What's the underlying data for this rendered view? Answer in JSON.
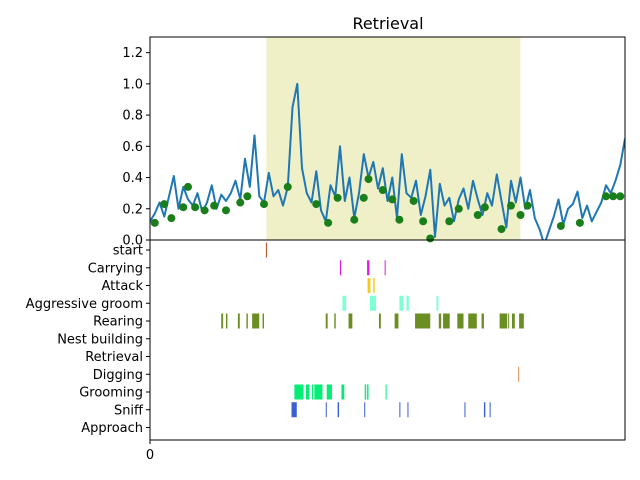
{
  "title": "Retrieval",
  "chart_data": [
    {
      "type": "line",
      "title": "Retrieval",
      "ylim": [
        0,
        1.3
      ],
      "yticks": [
        "0.0",
        "0.2",
        "0.4",
        "0.6",
        "0.8",
        "1.0",
        "1.2"
      ],
      "xlim": [
        0,
        100
      ],
      "highlight_span": {
        "start": 24.5,
        "end": 78,
        "color": "#f0f0c8"
      },
      "series": [
        {
          "color": "#1f77b4",
          "x": [
            0,
            1,
            2,
            3,
            4,
            5,
            6,
            7,
            8,
            9,
            10,
            11,
            12,
            13,
            14,
            15,
            16,
            17,
            18,
            19,
            20,
            21,
            22,
            23,
            24,
            25,
            26,
            27,
            28,
            29,
            30,
            31,
            32,
            33,
            34,
            35,
            36,
            37,
            38,
            39,
            40,
            41,
            42,
            43,
            44,
            45,
            46,
            47,
            48,
            49,
            50,
            51,
            52,
            53,
            54,
            55,
            56,
            57,
            58,
            59,
            60,
            61,
            62,
            63,
            64,
            65,
            66,
            67,
            68,
            69,
            70,
            71,
            72,
            73,
            74,
            75,
            76,
            77,
            78,
            79,
            80,
            81,
            82,
            83,
            84,
            85,
            86,
            87,
            88,
            89,
            90,
            91,
            92,
            93,
            94,
            95,
            96,
            97,
            98,
            99,
            100
          ],
          "y": [
            0.12,
            0.17,
            0.24,
            0.15,
            0.28,
            0.41,
            0.2,
            0.34,
            0.26,
            0.22,
            0.3,
            0.18,
            0.24,
            0.35,
            0.2,
            0.29,
            0.25,
            0.3,
            0.38,
            0.26,
            0.52,
            0.34,
            0.67,
            0.28,
            0.24,
            0.43,
            0.28,
            0.32,
            0.22,
            0.34,
            0.85,
            1.0,
            0.46,
            0.3,
            0.24,
            0.44,
            0.19,
            0.12,
            0.35,
            0.28,
            0.6,
            0.25,
            0.4,
            0.14,
            0.3,
            0.55,
            0.4,
            0.5,
            0.33,
            0.46,
            0.25,
            0.4,
            0.14,
            0.55,
            0.3,
            0.27,
            0.38,
            0.16,
            0.28,
            0.45,
            0.02,
            0.36,
            0.22,
            0.27,
            0.12,
            0.26,
            0.33,
            0.2,
            0.38,
            0.26,
            0.16,
            0.3,
            0.22,
            0.42,
            0.25,
            0.08,
            0.38,
            0.24,
            0.4,
            0.2,
            0.32,
            0.14,
            0.07,
            -0.03,
            0.06,
            0.15,
            0.26,
            0.1,
            0.2,
            0.23,
            0.31,
            0.14,
            0.22,
            0.12,
            0.18,
            0.24,
            0.35,
            0.3,
            0.38,
            0.48,
            0.65
          ]
        }
      ],
      "markers": {
        "color": "#1a7f1a",
        "points": [
          [
            1,
            0.11
          ],
          [
            3,
            0.23
          ],
          [
            4.5,
            0.14
          ],
          [
            7,
            0.21
          ],
          [
            8,
            0.34
          ],
          [
            9.5,
            0.21
          ],
          [
            11.5,
            0.19
          ],
          [
            13.5,
            0.22
          ],
          [
            16,
            0.19
          ],
          [
            19,
            0.24
          ],
          [
            20.5,
            0.28
          ],
          [
            24,
            0.23
          ],
          [
            29,
            0.34
          ],
          [
            35,
            0.23
          ],
          [
            37.5,
            0.11
          ],
          [
            39.5,
            0.27
          ],
          [
            43,
            0.13
          ],
          [
            45,
            0.27
          ],
          [
            46,
            0.39
          ],
          [
            49,
            0.32
          ],
          [
            51,
            0.26
          ],
          [
            52.5,
            0.13
          ],
          [
            55.5,
            0.25
          ],
          [
            57.5,
            0.12
          ],
          [
            59,
            0.01
          ],
          [
            63,
            0.12
          ],
          [
            65,
            0.2
          ],
          [
            69,
            0.16
          ],
          [
            70.5,
            0.21
          ],
          [
            74,
            0.07
          ],
          [
            76,
            0.22
          ],
          [
            78,
            0.16
          ],
          [
            79.5,
            0.22
          ],
          [
            86.5,
            0.09
          ],
          [
            90.5,
            0.11
          ],
          [
            96,
            0.28
          ],
          [
            97.5,
            0.28
          ],
          [
            99,
            0.28
          ]
        ]
      }
    },
    {
      "type": "event-raster",
      "xlim": [
        0,
        100
      ],
      "xticks": [
        "0"
      ],
      "rows": [
        {
          "label": "start",
          "color": "#b5451b",
          "events": [
            [
              24.4,
              24.6
            ]
          ]
        },
        {
          "label": "Carrying",
          "color": "#e01be0",
          "events": [
            [
              40,
              40.2
            ],
            [
              45.7,
              46.2
            ],
            [
              49.4,
              49.6
            ]
          ]
        },
        {
          "label": "Attack",
          "color": "#f2cc1a",
          "events": [
            [
              45.8,
              46.4
            ],
            [
              47,
              47.3
            ]
          ]
        },
        {
          "label": "Aggressive groom",
          "color": "#7fffd4",
          "events": [
            [
              40.5,
              41.3
            ],
            [
              46.3,
              47.6
            ],
            [
              52.5,
              53.3
            ],
            [
              54,
              54.5
            ],
            [
              60.3,
              60.7
            ]
          ]
        },
        {
          "label": "Rearing",
          "color": "#6b8e23",
          "events": [
            [
              15,
              15.4
            ],
            [
              16,
              16.3
            ],
            [
              18.5,
              18.9
            ],
            [
              20.3,
              20.6
            ],
            [
              21.5,
              23
            ],
            [
              23.7,
              24
            ],
            [
              37,
              37.4
            ],
            [
              38.8,
              39.1
            ],
            [
              41.8,
              42.6
            ],
            [
              48.2,
              48.6
            ],
            [
              51.5,
              52.3
            ],
            [
              55.8,
              59
            ],
            [
              60.8,
              61.3
            ],
            [
              61.7,
              63.1
            ],
            [
              64.7,
              66
            ],
            [
              67,
              68.8
            ],
            [
              69.8,
              70.3
            ],
            [
              73.6,
              75.2
            ],
            [
              75.4,
              75.6
            ],
            [
              76.2,
              76.8
            ],
            [
              77.7,
              78.7
            ]
          ]
        },
        {
          "label": "Nest building",
          "color": "#4f6fe0",
          "events": []
        },
        {
          "label": "Retrieval",
          "color": "#4f6fe0",
          "events": []
        },
        {
          "label": "Digging",
          "color": "#e69060",
          "events": [
            [
              77.5,
              77.7
            ]
          ]
        },
        {
          "label": "Grooming",
          "color": "#00ee76",
          "events": [
            [
              30.4,
              32.3
            ],
            [
              32.8,
              33.5
            ],
            [
              34.1,
              34.3
            ],
            [
              34.6,
              36.3
            ],
            [
              37.2,
              38.3
            ],
            [
              40.3,
              40.9
            ],
            [
              45.2,
              45.5
            ],
            [
              45.7,
              46
            ],
            [
              49.6,
              49.8
            ]
          ]
        },
        {
          "label": "Sniff",
          "color": "#3a5fd0",
          "events": [
            [
              29.8,
              30.9
            ],
            [
              37,
              37.2
            ],
            [
              39.5,
              39.8
            ],
            [
              45.1,
              45.3
            ],
            [
              52.5,
              52.7
            ],
            [
              54.2,
              54.4
            ],
            [
              66.2,
              66.4
            ],
            [
              70.3,
              70.6
            ],
            [
              71.5,
              71.7
            ]
          ]
        },
        {
          "label": "Approach",
          "color": "#4f6fe0",
          "events": []
        }
      ]
    }
  ]
}
